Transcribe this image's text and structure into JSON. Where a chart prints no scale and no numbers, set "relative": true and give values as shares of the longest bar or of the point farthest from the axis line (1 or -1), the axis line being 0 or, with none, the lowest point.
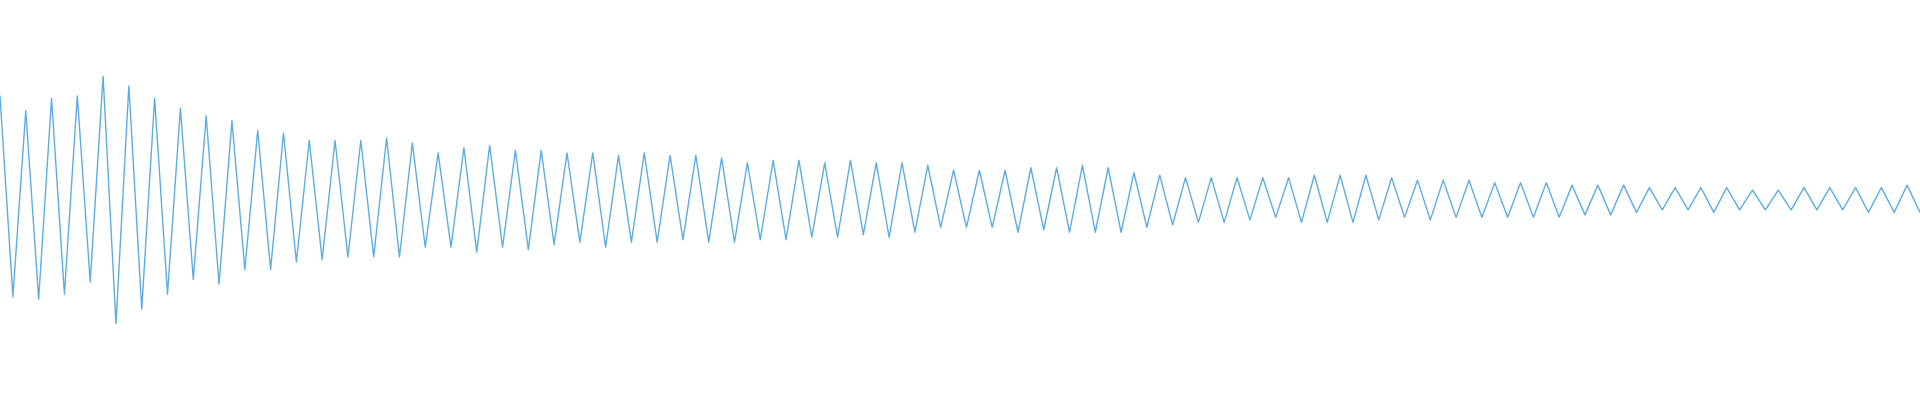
{
  "chart_data": {
    "type": "line",
    "relative": true,
    "categories": [
      null,
      null,
      null,
      null,
      null,
      null,
      null,
      null,
      null,
      null,
      null,
      null,
      null,
      null,
      null,
      null,
      null,
      null,
      null,
      null,
      null,
      null,
      null,
      null,
      null,
      null,
      null,
      null,
      null,
      null,
      null,
      null,
      null,
      null,
      null,
      null,
      null,
      null,
      null,
      null,
      null,
      null,
      null,
      null,
      null,
      null,
      null,
      null,
      null,
      null,
      null,
      null,
      null,
      null,
      null,
      null,
      null,
      null,
      null,
      null,
      null,
      null,
      null,
      null,
      null,
      null,
      null,
      null,
      null,
      null,
      null,
      null,
      null,
      null,
      null,
      null,
      null,
      null,
      null,
      null,
      null,
      null,
      null,
      null,
      null,
      null,
      null,
      null,
      null,
      null,
      null,
      null,
      null,
      null,
      null,
      null,
      null,
      null,
      null,
      null,
      null,
      null,
      null,
      null,
      null,
      null,
      null,
      null,
      null,
      null,
      null,
      null,
      null,
      null,
      null,
      null,
      null,
      null,
      null,
      null,
      null,
      null,
      null,
      null,
      null,
      null,
      null,
      null,
      null,
      null,
      null,
      null,
      null,
      null,
      null,
      null,
      null,
      null,
      null,
      null,
      null,
      null,
      null,
      null,
      null,
      null,
      null,
      null,
      null,
      null
    ],
    "series": [
      {
        "color": "#5dade2",
        "values": [
          0.92,
          0.11,
          0.86,
          0.1,
          0.91,
          0.12,
          0.92,
          0.17,
          1.0,
          0.0,
          0.96,
          0.06,
          0.91,
          0.12,
          0.87,
          0.18,
          0.84,
          0.16,
          0.82,
          0.22,
          0.78,
          0.22,
          0.77,
          0.25,
          0.74,
          0.26,
          0.74,
          0.27,
          0.74,
          0.27,
          0.75,
          0.27,
          0.73,
          0.31,
          0.69,
          0.31,
          0.71,
          0.29,
          0.72,
          0.31,
          0.7,
          0.3,
          0.7,
          0.32,
          0.69,
          0.33,
          0.69,
          0.31,
          0.68,
          0.33,
          0.69,
          0.33,
          0.68,
          0.34,
          0.68,
          0.33,
          0.67,
          0.33,
          0.65,
          0.34,
          0.66,
          0.34,
          0.66,
          0.35,
          0.65,
          0.35,
          0.66,
          0.36,
          0.65,
          0.35,
          0.65,
          0.37,
          0.64,
          0.39,
          0.62,
          0.39,
          0.62,
          0.39,
          0.62,
          0.37,
          0.63,
          0.38,
          0.63,
          0.37,
          0.64,
          0.37,
          0.63,
          0.37,
          0.61,
          0.39,
          0.6,
          0.4,
          0.59,
          0.41,
          0.59,
          0.41,
          0.59,
          0.42,
          0.59,
          0.43,
          0.59,
          0.41,
          0.6,
          0.41,
          0.6,
          0.41,
          0.6,
          0.42,
          0.59,
          0.43,
          0.58,
          0.42,
          0.58,
          0.43,
          0.58,
          0.43,
          0.57,
          0.43,
          0.57,
          0.43,
          0.57,
          0.43,
          0.56,
          0.44,
          0.56,
          0.44,
          0.56,
          0.45,
          0.55,
          0.46,
          0.55,
          0.46,
          0.55,
          0.45,
          0.55,
          0.46,
          0.54,
          0.46,
          0.54,
          0.46,
          0.55,
          0.46,
          0.55,
          0.46,
          0.55,
          0.45,
          0.55,
          0.45,
          0.56,
          0.45
        ]
      }
    ]
  }
}
